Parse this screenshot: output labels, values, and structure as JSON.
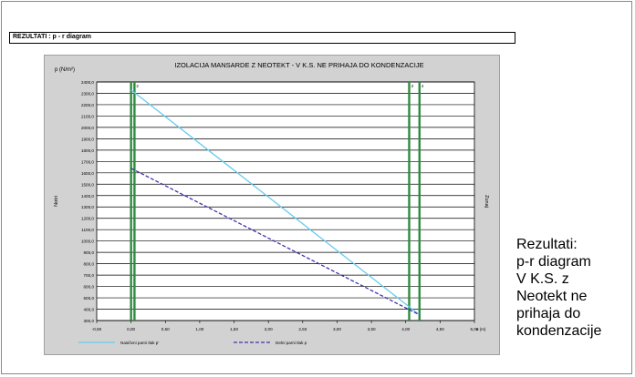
{
  "header": {
    "title": "REZULTATI : p - r diagram"
  },
  "caption": {
    "lines": [
      "Rezultati:",
      "p-r diagram",
      "V K.S. z",
      "Neotekt ne",
      "prihaja do",
      "kondenzacije"
    ]
  },
  "chart_data": {
    "type": "line",
    "title": "IZOLACIJA MANSARDE Z NEOTEKT - V K.S. NE PRIHAJA DO KONDENZACIJE",
    "ylabel": "p (N/m²)",
    "xlabel": "x (m)",
    "left_side_label": "Notri",
    "right_side_label": "Zunaj",
    "xlim": [
      -0.5,
      5.0
    ],
    "ylim": [
      300,
      2400
    ],
    "x_ticks": [
      "-0,50",
      "0,00",
      "0,50",
      "1,00",
      "1,50",
      "2,00",
      "2,50",
      "3,00",
      "3,50",
      "4,00",
      "4,50",
      "5,00"
    ],
    "y_ticks": [
      "300,0",
      "400,0",
      "500,0",
      "600,0",
      "700,0",
      "800,0",
      "900,0",
      "1000,0",
      "1100,0",
      "1200,0",
      "1300,0",
      "1400,0",
      "1500,0",
      "1600,0",
      "1700,0",
      "1800,0",
      "1900,0",
      "2000,0",
      "2100,0",
      "2200,0",
      "2300,0",
      "2400,0"
    ],
    "grid": true,
    "layers": [
      {
        "x": 0.0,
        "label": "1"
      },
      {
        "x": 0.05,
        "label": "2"
      },
      {
        "x": 4.05,
        "label": "3"
      },
      {
        "x": 4.2,
        "label": "4"
      }
    ],
    "layer_color": "#2e8b3e",
    "series": [
      {
        "name": "Nasičeni parni tlak p'",
        "color": "#66ccee",
        "style": "solid",
        "x": [
          0.0,
          4.2
        ],
        "y": [
          2330,
          350
        ]
      },
      {
        "name": "Delni parni tlak p",
        "color": "#4433aa",
        "style": "dashed",
        "x": [
          0.0,
          4.2
        ],
        "y": [
          1640,
          350
        ]
      }
    ],
    "legend_position": "bottom"
  }
}
